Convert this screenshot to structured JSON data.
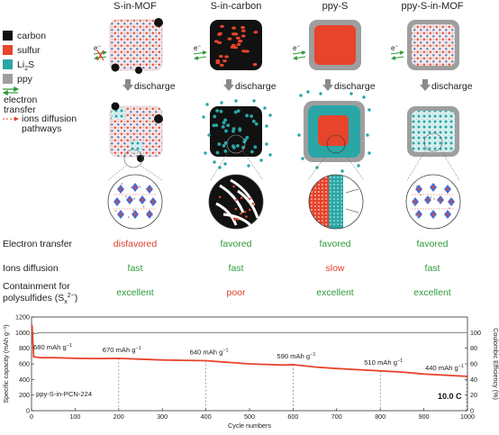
{
  "columns": [
    {
      "title": "S-in-MOF",
      "electron_transfer": "disfavored",
      "ions_diffusion": "fast",
      "containment": "excellent"
    },
    {
      "title": "S-in-carbon",
      "electron_transfer": "favored",
      "ions_diffusion": "fast",
      "containment": "poor"
    },
    {
      "title": "ppy-S",
      "electron_transfer": "favored",
      "ions_diffusion": "slow",
      "containment": "excellent"
    },
    {
      "title": "ppy-S-in-MOF",
      "electron_transfer": "favored",
      "ions_diffusion": "fast",
      "containment": "excellent"
    }
  ],
  "legend": {
    "carbon": "carbon",
    "sulfur": "sulfur",
    "li2s_main": "Li",
    "li2s_sub": "2",
    "li2s_end": "S",
    "ppy": "ppy",
    "electron_transfer_1": "electron",
    "electron_transfer_2": "transfer",
    "ions_diffusion_1": "ions diffusion",
    "ions_diffusion_2": "pathways",
    "colors": {
      "carbon": "#111111",
      "sulfur": "#e8432b",
      "li2s": "#2aa6a6",
      "ppy": "#9e9e9e"
    }
  },
  "electron_symbol": "e",
  "electron_sup": "−",
  "discharge": "discharge",
  "rows": {
    "electron_transfer": "Electron transfer",
    "ions_diffusion": "Ions diffusion",
    "containment_1": "Containment for",
    "containment_2": "polysulfides (S",
    "containment_sub": "x",
    "containment_sup": "2−",
    "containment_end": ")"
  },
  "chart_data": {
    "type": "line",
    "xlabel": "Cycle numbers",
    "ylabel_left": "Specific capacity (mAh g⁻¹)",
    "ylabel_right": "Coulombic Efficiency (%)",
    "xlim": [
      0,
      1000
    ],
    "ylim_left": [
      0,
      1200
    ],
    "ylim_right": [
      0,
      120
    ],
    "x_ticks": [
      0,
      100,
      200,
      300,
      400,
      500,
      600,
      700,
      800,
      900,
      1000
    ],
    "y_ticks_left": [
      0,
      200,
      400,
      600,
      800,
      1000,
      1200
    ],
    "y_ticks_right": [
      0,
      20,
      40,
      60,
      80,
      100
    ],
    "series": [
      {
        "axis": "left",
        "color": "#e8432b",
        "x": [
          1,
          5,
          20,
          50,
          100,
          150,
          200,
          250,
          300,
          350,
          400,
          450,
          500,
          550,
          580,
          600,
          650,
          700,
          750,
          800,
          850,
          900,
          950,
          1000
        ],
        "y": [
          1100,
          690,
          680,
          678,
          672,
          668,
          670,
          660,
          650,
          645,
          640,
          620,
          600,
          590,
          585,
          590,
          560,
          540,
          525,
          510,
          495,
          470,
          455,
          440
        ]
      },
      {
        "axis": "right",
        "color": "#8a8a8a",
        "x": [
          1,
          20,
          100,
          200,
          300,
          400,
          500,
          600,
          700,
          800,
          900,
          1000
        ],
        "y": [
          98,
          100,
          100,
          100,
          100,
          100,
          100,
          100,
          100,
          100,
          100,
          100
        ]
      }
    ],
    "annotations": [
      {
        "x": 0,
        "text": "680 mAh g",
        "sup": "−1"
      },
      {
        "x": 200,
        "text": "670 mAh g",
        "sup": "−1"
      },
      {
        "x": 400,
        "text": "640 mAh g",
        "sup": "−1"
      },
      {
        "x": 600,
        "text": "590 mAh g",
        "sup": "−1"
      },
      {
        "x": 800,
        "text": "510 mAh g",
        "sup": "−1"
      },
      {
        "x": 1000,
        "text": "440 mAh g",
        "sup": "−1"
      }
    ],
    "sample_label": "ppy-S-in-PCN-224",
    "rate_label": "10.0 C"
  }
}
